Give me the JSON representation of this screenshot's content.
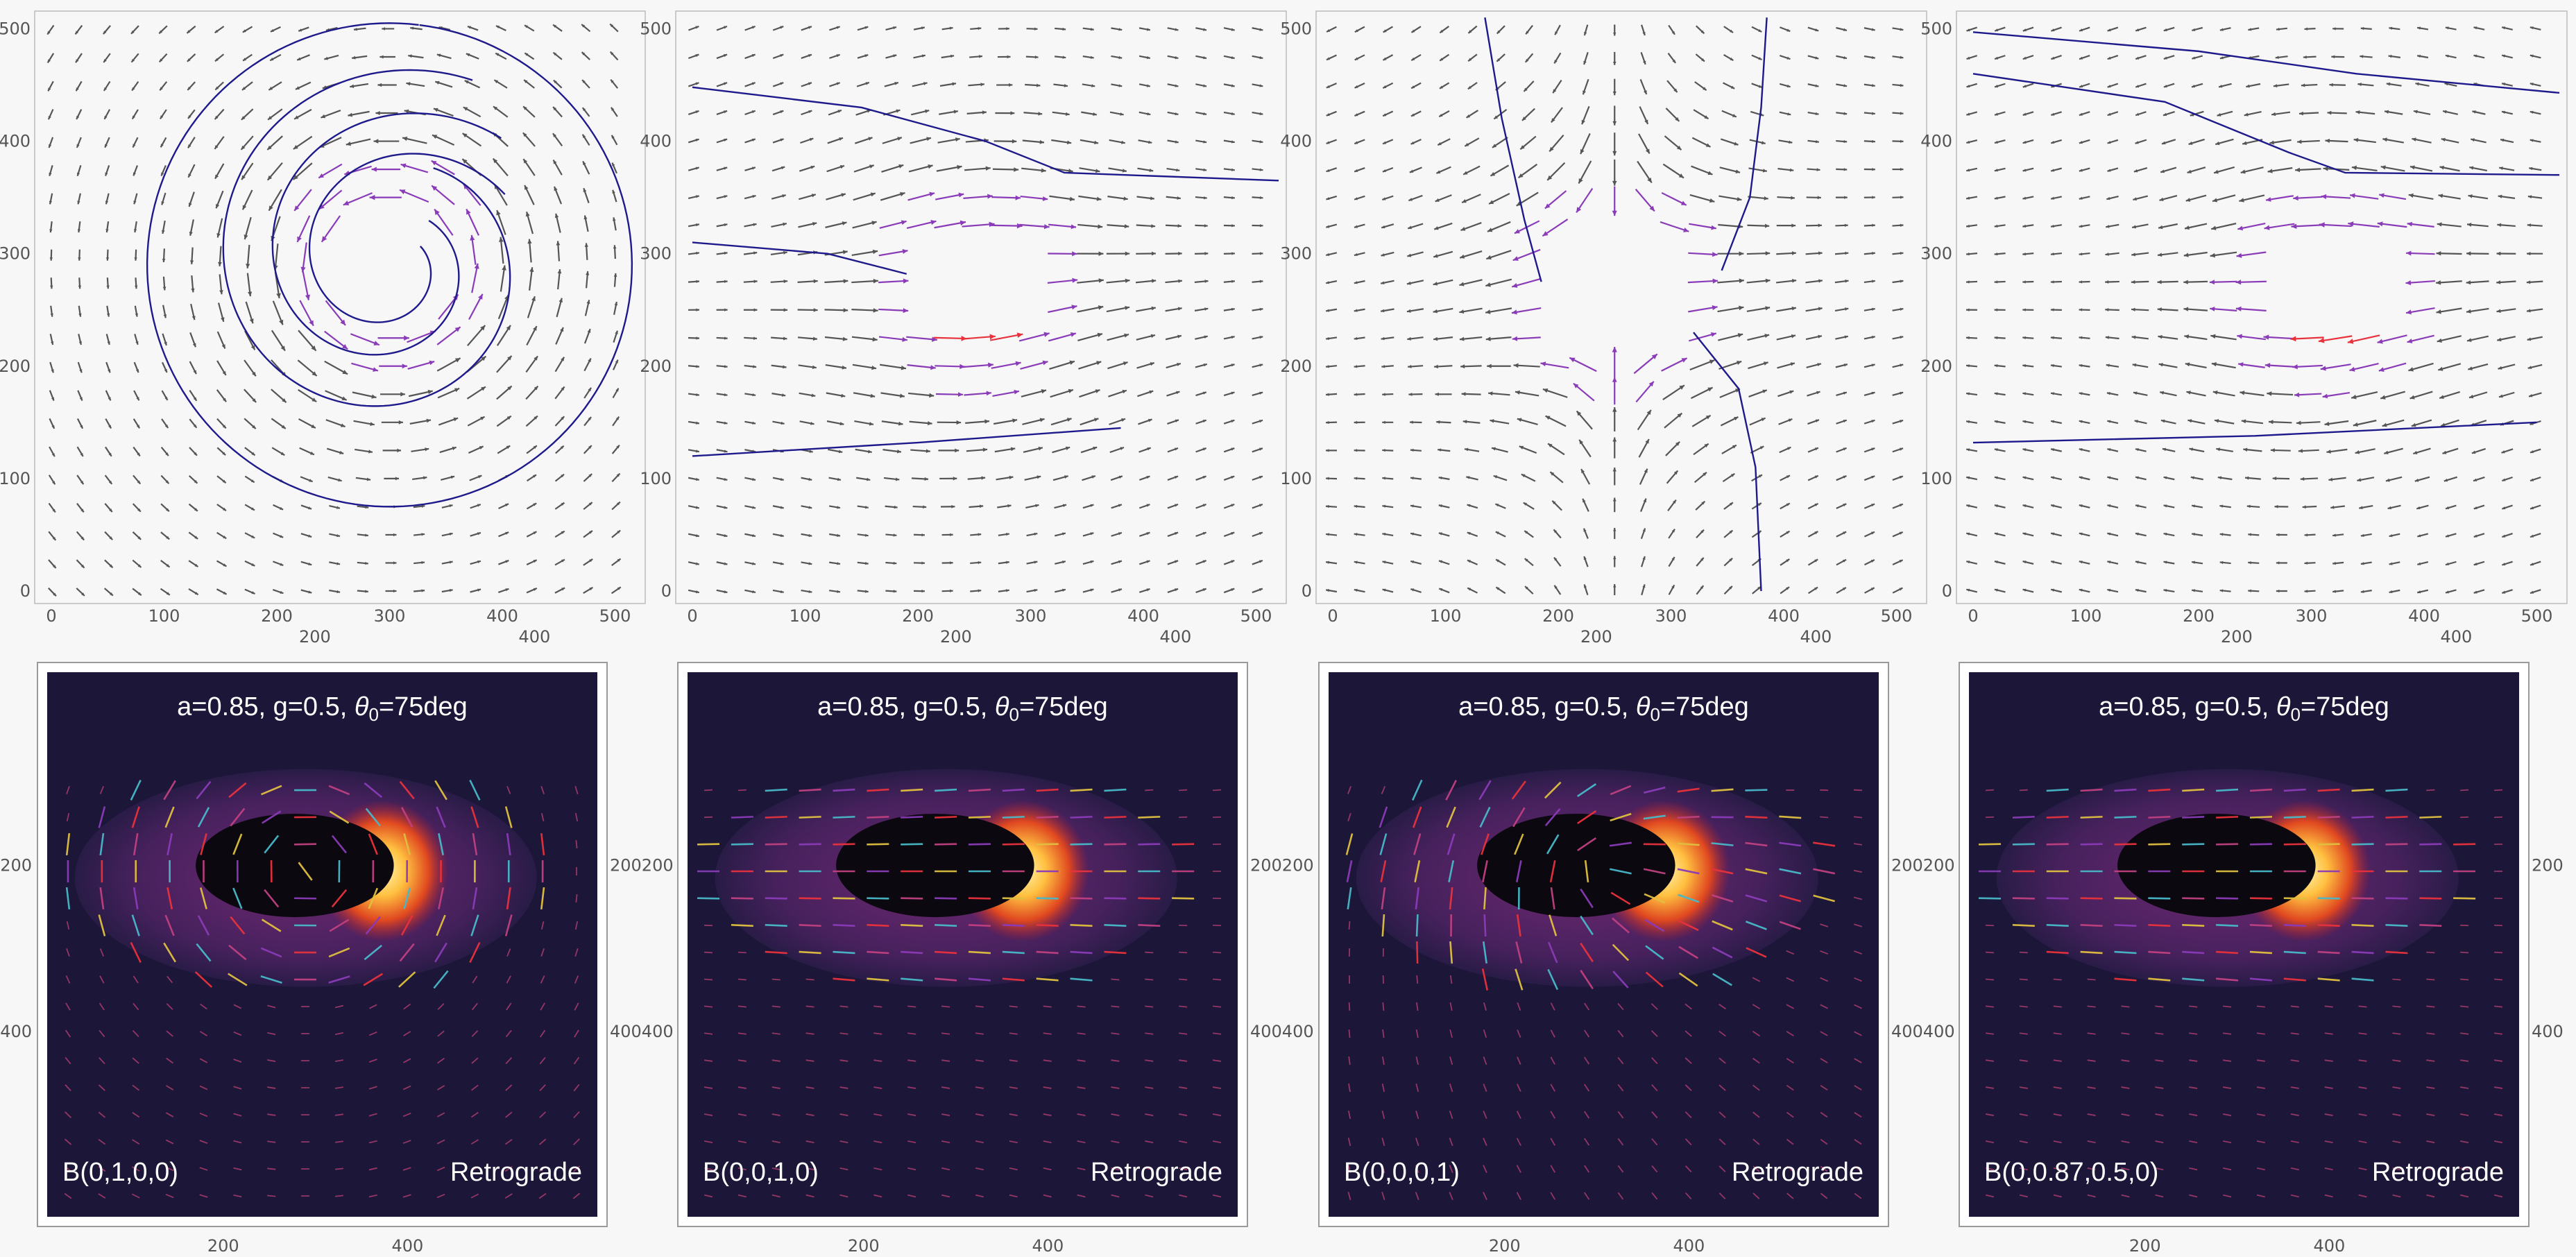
{
  "top_row": [
    {
      "field": "swirl",
      "x_ticks": [
        "0",
        "100",
        "200",
        "300",
        "400",
        "500"
      ],
      "y_ticks": [
        "0",
        "100",
        "200",
        "300",
        "400",
        "500"
      ],
      "below_ticks": [
        "200",
        "400"
      ]
    },
    {
      "field": "flowR",
      "x_ticks": [
        "0",
        "100",
        "200",
        "300",
        "400",
        "500"
      ],
      "y_ticks": [
        "0",
        "100",
        "200",
        "300",
        "400",
        "500"
      ],
      "below_ticks": [
        "200",
        "400"
      ]
    },
    {
      "field": "hyperbolic",
      "x_ticks": [
        "0",
        "100",
        "200",
        "300",
        "400",
        "500"
      ],
      "y_ticks": [
        "0",
        "100",
        "200",
        "300",
        "400",
        "500"
      ],
      "below_ticks": [
        "200",
        "400"
      ]
    },
    {
      "field": "flowL",
      "x_ticks": [
        "0",
        "100",
        "200",
        "300",
        "400",
        "500"
      ],
      "y_ticks": [
        "0",
        "100",
        "200",
        "300",
        "400",
        "500"
      ],
      "below_ticks": [
        "200",
        "400"
      ]
    }
  ],
  "bottom_row": [
    {
      "title": "a=0.85, g=0.5, θ0=75deg",
      "title_parts": {
        "pre": "a=0.85, g=0.5, ",
        "theta": "θ",
        "sub": "0",
        "post": "=75deg"
      },
      "field_label": "B(0,1,0,0)",
      "motion_label": "Retrograde",
      "left_ticks": [
        "200",
        "400"
      ],
      "right_ticks": [
        "200",
        "400"
      ],
      "bottom_ticks": [
        "200",
        "400"
      ]
    },
    {
      "title": "a=0.85, g=0.5, θ0=75deg",
      "title_parts": {
        "pre": "a=0.85, g=0.5, ",
        "theta": "θ",
        "sub": "0",
        "post": "=75deg"
      },
      "field_label": "B(0,0,1,0)",
      "motion_label": "Retrograde",
      "left_ticks": [
        "200",
        "400"
      ],
      "right_ticks": [
        "200",
        "400"
      ],
      "bottom_ticks": [
        "200",
        "400"
      ]
    },
    {
      "title": "a=0.85, g=0.5, θ0=75deg",
      "title_parts": {
        "pre": "a=0.85, g=0.5, ",
        "theta": "θ",
        "sub": "0",
        "post": "=75deg"
      },
      "field_label": "B(0,0,0,1)",
      "motion_label": "Retrograde",
      "left_ticks": [
        "200",
        "400"
      ],
      "right_ticks": [
        "200",
        "400"
      ],
      "bottom_ticks": [
        "200",
        "400"
      ]
    },
    {
      "title": "a=0.85, g=0.5, θ0=75deg",
      "title_parts": {
        "pre": "a=0.85, g=0.5, ",
        "theta": "θ",
        "sub": "0",
        "post": "=75deg"
      },
      "field_label": "B(0,0.87,0.5,0)",
      "motion_label": "Retrograde",
      "left_ticks": [
        "200",
        "400"
      ],
      "right_ticks": [],
      "bottom_ticks": [
        "200",
        "400"
      ]
    }
  ],
  "colors": {
    "background": "#f7f7f7",
    "streamline": "#1e1a8c",
    "vector_dark": "#555555",
    "vector_purple": "#8a3bb8",
    "vector_red": "#e8323c",
    "image_bg": "#1c1638",
    "image_hole": "#0b0810",
    "image_glow_hot": "#ffd060",
    "vector_cyan": "#48b8c8",
    "vector_yellow": "#e0c040"
  },
  "chart_data": [
    {
      "type": "vector-field",
      "panel": 1,
      "field": "swirl",
      "xlim": [
        0,
        512
      ],
      "ylim": [
        0,
        512
      ],
      "streamlines": 4
    },
    {
      "type": "vector-field",
      "panel": 2,
      "field": "flowR",
      "xlim": [
        0,
        512
      ],
      "ylim": [
        0,
        512
      ],
      "streamlines": 3
    },
    {
      "type": "vector-field",
      "panel": 3,
      "field": "hyperbolic",
      "xlim": [
        0,
        512
      ],
      "ylim": [
        0,
        512
      ],
      "streamlines": 3
    },
    {
      "type": "vector-field",
      "panel": 4,
      "field": "flowL",
      "xlim": [
        0,
        512
      ],
      "ylim": [
        0,
        512
      ],
      "streamlines": 3
    },
    {
      "type": "heatmap",
      "panel": 5,
      "label": "B(0,1,0,0)",
      "pattern": "swirl"
    },
    {
      "type": "heatmap",
      "panel": 6,
      "label": "B(0,0,1,0)",
      "pattern": "flowR"
    },
    {
      "type": "heatmap",
      "panel": 7,
      "label": "B(0,0,0,1)",
      "pattern": "hyperbolic"
    },
    {
      "type": "heatmap",
      "panel": 8,
      "label": "B(0,0.87,0.5,0)",
      "pattern": "flowL"
    }
  ]
}
